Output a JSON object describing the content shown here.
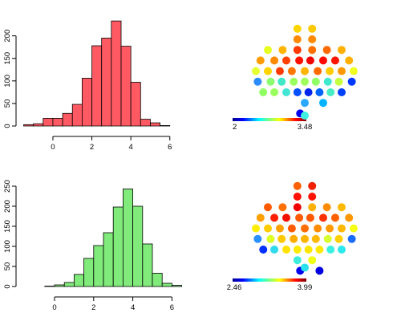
{
  "chart_data": [
    {
      "type": "bar",
      "subtype": "histogram",
      "fill": "#ff5a63",
      "bin_width": 0.5,
      "bin_edges": [
        -1.5,
        -1.0,
        -0.5,
        0.0,
        0.5,
        1.0,
        1.5,
        2.0,
        2.5,
        3.0,
        3.5,
        4.0,
        4.5,
        5.0,
        5.5,
        6.0
      ],
      "values": [
        3,
        5,
        17,
        17,
        28,
        48,
        106,
        178,
        195,
        233,
        177,
        97,
        15,
        7,
        1
      ],
      "xlim": [
        -1.5,
        6.0
      ],
      "ylim": [
        0,
        235
      ],
      "x_ticks": [
        0,
        2,
        4,
        6
      ],
      "y_ticks": [
        0,
        50,
        100,
        150,
        200
      ]
    },
    {
      "type": "scatter",
      "subtype": "electrode-topography",
      "colormap": "jet",
      "colorbar_min": "2",
      "colorbar_max": "3.48",
      "points": [
        {
          "x": -0.8,
          "y": 6,
          "color": "#ffd600"
        },
        {
          "x": 0.8,
          "y": 6,
          "color": "#ffc800"
        },
        {
          "x": -0.8,
          "y": 5,
          "color": "#ff8a00"
        },
        {
          "x": 0.8,
          "y": 5,
          "color": "#ff8a00"
        },
        {
          "x": -4,
          "y": 4,
          "color": "#e6ff20"
        },
        {
          "x": -2.4,
          "y": 4,
          "color": "#ffb400"
        },
        {
          "x": -0.8,
          "y": 4,
          "color": "#ff3a00"
        },
        {
          "x": 0.8,
          "y": 4,
          "color": "#ff7000"
        },
        {
          "x": 2.4,
          "y": 4,
          "color": "#ff6a00"
        },
        {
          "x": 4,
          "y": 4,
          "color": "#ffb000"
        },
        {
          "x": -4.8,
          "y": 3,
          "color": "#ff9c00"
        },
        {
          "x": -3.3,
          "y": 3,
          "color": "#ff8a00"
        },
        {
          "x": -2,
          "y": 3,
          "color": "#ff4000"
        },
        {
          "x": -0.6,
          "y": 3,
          "color": "#ff1000"
        },
        {
          "x": 0.6,
          "y": 3,
          "color": "#f00000"
        },
        {
          "x": 2,
          "y": 3,
          "color": "#ff0a00"
        },
        {
          "x": 3.3,
          "y": 3,
          "color": "#ff1400"
        },
        {
          "x": 4.8,
          "y": 3,
          "color": "#ffb000"
        },
        {
          "x": -5.3,
          "y": 2,
          "color": "#e6ff30"
        },
        {
          "x": -4,
          "y": 2,
          "color": "#ffd400"
        },
        {
          "x": -2.7,
          "y": 2,
          "color": "#ff3a00"
        },
        {
          "x": -1.4,
          "y": 2,
          "color": "#ff7600"
        },
        {
          "x": 0,
          "y": 2,
          "color": "#ffb400"
        },
        {
          "x": 1.4,
          "y": 2,
          "color": "#ff6a00"
        },
        {
          "x": 2.7,
          "y": 2,
          "color": "#ffcc00"
        },
        {
          "x": 4,
          "y": 2,
          "color": "#ff9800"
        },
        {
          "x": 5.3,
          "y": 2,
          "color": "#f0ff1e"
        },
        {
          "x": -5.1,
          "y": 1,
          "color": "#2a8cff"
        },
        {
          "x": -3.7,
          "y": 1,
          "color": "#8cff6e"
        },
        {
          "x": -2.5,
          "y": 1,
          "color": "#40e8c8"
        },
        {
          "x": -1.2,
          "y": 1,
          "color": "#9cff60"
        },
        {
          "x": 0,
          "y": 1,
          "color": "#a0ff5a"
        },
        {
          "x": 1.2,
          "y": 1,
          "color": "#90ff66"
        },
        {
          "x": 2.5,
          "y": 1,
          "color": "#40e8d0"
        },
        {
          "x": 3.7,
          "y": 1,
          "color": "#c6ff40"
        },
        {
          "x": 5.1,
          "y": 1,
          "color": "#0038ff"
        },
        {
          "x": -4.5,
          "y": 0,
          "color": "#90ff64"
        },
        {
          "x": -3.3,
          "y": 0,
          "color": "#9aff5e"
        },
        {
          "x": -2,
          "y": 0,
          "color": "#42e4d4"
        },
        {
          "x": -0.8,
          "y": 0,
          "color": "#0050ff"
        },
        {
          "x": 0.4,
          "y": 0,
          "color": "#0024f0"
        },
        {
          "x": 1.6,
          "y": 0,
          "color": "#0064ff"
        },
        {
          "x": 2.8,
          "y": 0,
          "color": "#46ecc4"
        },
        {
          "x": 4,
          "y": 0,
          "color": "#0040ff"
        },
        {
          "x": 0,
          "y": -1,
          "color": "#2aa8ff"
        },
        {
          "x": 2,
          "y": -1,
          "color": "#00b4ff"
        },
        {
          "x": -0.5,
          "y": -2,
          "color": "#0000f0"
        },
        {
          "x": 0,
          "y": -2.2,
          "color": "#40f0e0"
        }
      ]
    },
    {
      "type": "bar",
      "subtype": "histogram",
      "fill": "#80ea7a",
      "bin_width": 0.5,
      "bin_edges": [
        -0.5,
        0.0,
        0.5,
        1.0,
        1.5,
        2.0,
        2.5,
        3.0,
        3.5,
        4.0,
        4.5,
        5.0,
        5.5,
        6.0,
        6.5
      ],
      "values": [
        1,
        4,
        10,
        30,
        70,
        102,
        134,
        198,
        243,
        200,
        106,
        33,
        8,
        3
      ],
      "xlim": [
        -0.5,
        6.5
      ],
      "ylim": [
        0,
        250
      ],
      "x_ticks": [
        0,
        2,
        4,
        6
      ],
      "y_ticks": [
        0,
        50,
        100,
        150,
        200,
        250
      ]
    },
    {
      "type": "scatter",
      "subtype": "electrode-topography",
      "colormap": "jet",
      "colorbar_min": "2.46",
      "colorbar_max": "3.99",
      "points": [
        {
          "x": -0.8,
          "y": 6,
          "color": "#ff6000"
        },
        {
          "x": 0.8,
          "y": 6,
          "color": "#f02000"
        },
        {
          "x": -0.8,
          "y": 5,
          "color": "#ff1000"
        },
        {
          "x": 0.8,
          "y": 5,
          "color": "#ff1400"
        },
        {
          "x": -4,
          "y": 4,
          "color": "#ff5a00"
        },
        {
          "x": -2.4,
          "y": 4,
          "color": "#ff7000"
        },
        {
          "x": -0.8,
          "y": 4,
          "color": "#f20000"
        },
        {
          "x": 0.8,
          "y": 4,
          "color": "#ffb000"
        },
        {
          "x": 2.4,
          "y": 4,
          "color": "#ff8c00"
        },
        {
          "x": 4,
          "y": 4,
          "color": "#ffb800"
        },
        {
          "x": -4.8,
          "y": 3,
          "color": "#ffa000"
        },
        {
          "x": -3.3,
          "y": 3,
          "color": "#ff1e00"
        },
        {
          "x": -2,
          "y": 3,
          "color": "#f41000"
        },
        {
          "x": -0.6,
          "y": 3,
          "color": "#ff5a00"
        },
        {
          "x": 0.6,
          "y": 3,
          "color": "#ff5600"
        },
        {
          "x": 2,
          "y": 3,
          "color": "#ff3000"
        },
        {
          "x": 3.3,
          "y": 3,
          "color": "#ff6000"
        },
        {
          "x": 4.8,
          "y": 3,
          "color": "#ff9800"
        },
        {
          "x": -5.3,
          "y": 2,
          "color": "#ffee00"
        },
        {
          "x": -4,
          "y": 2,
          "color": "#ffcc00"
        },
        {
          "x": -2.7,
          "y": 2,
          "color": "#ffa000"
        },
        {
          "x": -1.4,
          "y": 2,
          "color": "#ff5a00"
        },
        {
          "x": 0,
          "y": 2,
          "color": "#ff6e00"
        },
        {
          "x": 1.4,
          "y": 2,
          "color": "#ff8c00"
        },
        {
          "x": 2.7,
          "y": 2,
          "color": "#ff9a00"
        },
        {
          "x": 4,
          "y": 2,
          "color": "#ffb800"
        },
        {
          "x": 5.3,
          "y": 2,
          "color": "#f4ff14"
        },
        {
          "x": -5.1,
          "y": 1,
          "color": "#2a90ff"
        },
        {
          "x": -3.7,
          "y": 1,
          "color": "#dcff26"
        },
        {
          "x": -2.5,
          "y": 1,
          "color": "#ffc800"
        },
        {
          "x": -1.2,
          "y": 1,
          "color": "#ffac00"
        },
        {
          "x": 0,
          "y": 1,
          "color": "#ffb400"
        },
        {
          "x": 1.2,
          "y": 1,
          "color": "#ffb800"
        },
        {
          "x": 2.5,
          "y": 1,
          "color": "#d8ff30"
        },
        {
          "x": 3.7,
          "y": 1,
          "color": "#ffd000"
        },
        {
          "x": 5.1,
          "y": 1,
          "color": "#1a6cff"
        },
        {
          "x": -4.5,
          "y": 0,
          "color": "#0030ff"
        },
        {
          "x": -3.3,
          "y": 0,
          "color": "#30dcec"
        },
        {
          "x": -2,
          "y": 0,
          "color": "#ffe200"
        },
        {
          "x": -0.8,
          "y": 0,
          "color": "#ffea00"
        },
        {
          "x": 0.4,
          "y": 0,
          "color": "#ffe600"
        },
        {
          "x": 1.6,
          "y": 0,
          "color": "#ffe800"
        },
        {
          "x": 2.8,
          "y": 0,
          "color": "#3af0e0"
        },
        {
          "x": 4,
          "y": 0,
          "color": "#2ae8ec"
        },
        {
          "x": -0.8,
          "y": -1,
          "color": "#40ecdc"
        },
        {
          "x": 0.8,
          "y": -1,
          "color": "#f0ff14"
        },
        {
          "x": -0.5,
          "y": -2,
          "color": "#0000f0"
        },
        {
          "x": 0,
          "y": -1.7,
          "color": "#2ae0ec"
        },
        {
          "x": 1.6,
          "y": -2,
          "color": "#0000e0"
        }
      ]
    }
  ]
}
